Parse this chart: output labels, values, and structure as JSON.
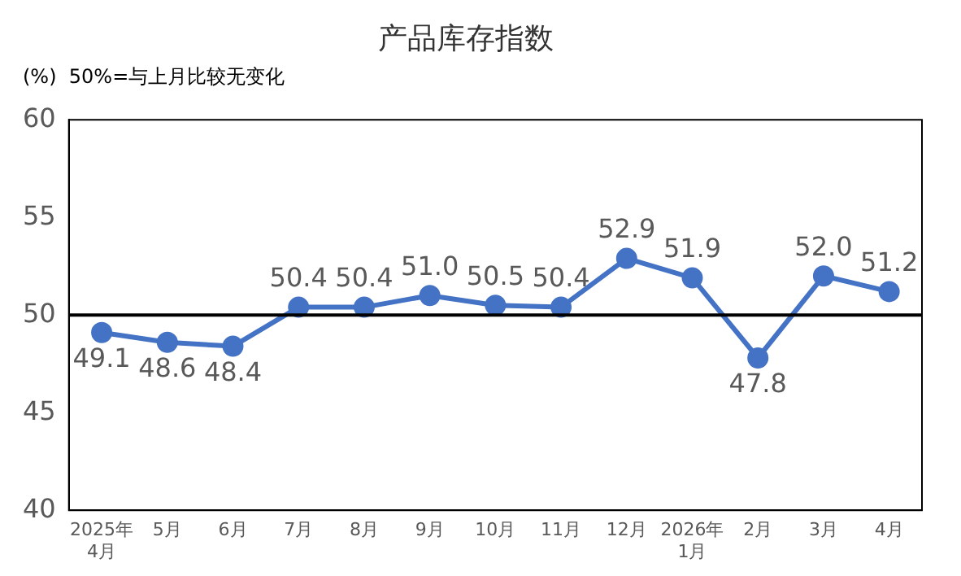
{
  "chart_data": {
    "type": "line",
    "title": "产品库存指数",
    "annotations": [
      "(%)  50%=与上月比较无变化"
    ],
    "categories": [
      "2025年\n4月",
      "5月",
      "6月",
      "7月",
      "8月",
      "9月",
      "10月",
      "11月",
      "12月",
      "2026年\n1月",
      "2月",
      "3月",
      "4月"
    ],
    "series": [
      {
        "color": "#4472c4",
        "values": [
          49.1,
          48.6,
          48.4,
          50.4,
          50.4,
          51.0,
          50.5,
          50.4,
          52.9,
          51.9,
          47.8,
          52.0,
          51.2
        ]
      }
    ],
    "value_labels": [
      "49.1",
      "48.6",
      "48.4",
      "50.4",
      "50.4",
      "51.0",
      "50.5",
      "50.4",
      "52.9",
      "51.9",
      "47.8",
      "52.0",
      "51.2"
    ],
    "ylim": [
      40,
      60
    ],
    "yticks": [
      40,
      45,
      50,
      55,
      60
    ],
    "grid": false,
    "legend": false,
    "marker": "circle",
    "line_style": "solid",
    "ref_lines": [
      {
        "axis": "y",
        "value": 50,
        "color": "#000000"
      }
    ]
  }
}
